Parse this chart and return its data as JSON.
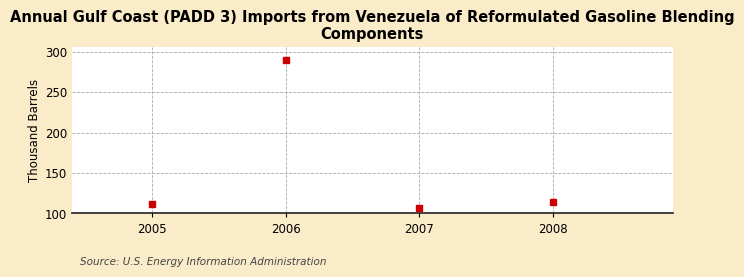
{
  "title": "Annual Gulf Coast (PADD 3) Imports from Venezuela of Reformulated Gasoline Blending\nComponents",
  "ylabel": "Thousand Barrels",
  "source": "Source: U.S. Energy Information Administration",
  "x": [
    2005,
    2006,
    2007,
    2008
  ],
  "y": [
    112,
    289,
    107,
    114
  ],
  "xlim": [
    2004.4,
    2008.9
  ],
  "ylim": [
    100,
    305
  ],
  "yticks": [
    100,
    150,
    200,
    250,
    300
  ],
  "xticks": [
    2005,
    2006,
    2007,
    2008
  ],
  "marker_color": "#cc0000",
  "marker_size": 4,
  "figure_bg_color": "#faecc8",
  "plot_bg_color": "#ffffff",
  "grid_color": "#aaaaaa",
  "title_fontsize": 10.5,
  "axis_fontsize": 8.5,
  "ylabel_fontsize": 8.5,
  "source_fontsize": 7.5
}
